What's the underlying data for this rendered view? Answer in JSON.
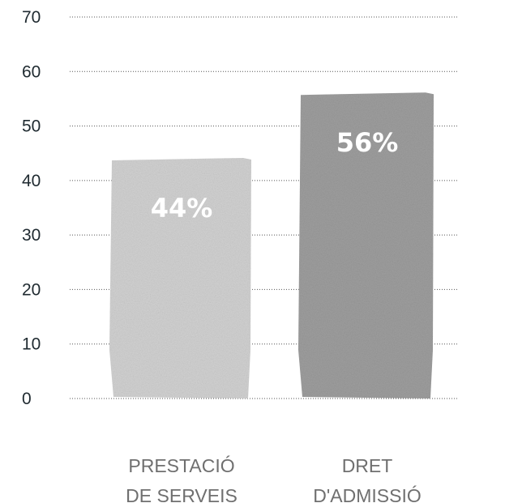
{
  "chart_data": {
    "type": "bar",
    "categories": [
      [
        "PRESTACIÓ",
        "DE SERVEIS"
      ],
      [
        "DRET",
        "D'ADMISSIÓ"
      ]
    ],
    "values": [
      44,
      56
    ],
    "data_labels": [
      "44%",
      "56%"
    ],
    "ylim": [
      0,
      70
    ],
    "yticks": [
      "0",
      "10",
      "20",
      "30",
      "40",
      "50",
      "60",
      "70"
    ],
    "grid": true,
    "colors": [
      "#d2d2d2",
      "#9e9e9e"
    ],
    "title": "",
    "xlabel": "",
    "ylabel": ""
  }
}
